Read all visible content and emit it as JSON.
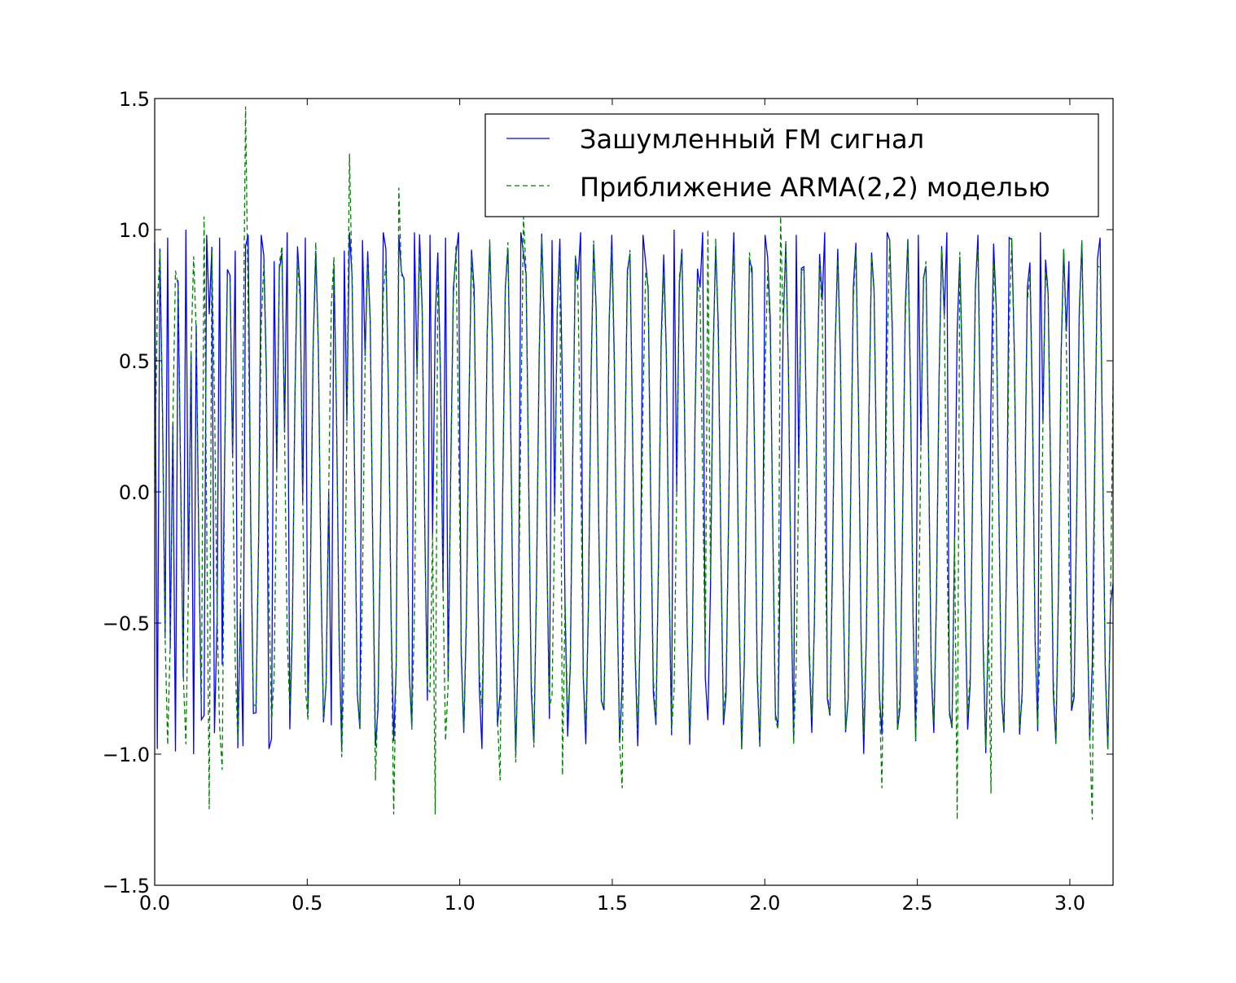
{
  "chart_data": {
    "type": "line",
    "title": "",
    "xlabel": "",
    "ylabel": "",
    "xlim": [
      0,
      3.1416
    ],
    "ylim": [
      -1.5,
      1.5
    ],
    "grid": false,
    "legend_position": "top-right",
    "x_ticks": [
      "0.0",
      "0.5",
      "1.0",
      "1.5",
      "2.0",
      "2.5",
      "3.0"
    ],
    "y_ticks": [
      "1.5",
      "1.0",
      "0.5",
      "0.0",
      "−0.5",
      "−1.0",
      "−1.5"
    ],
    "x_tick_values": [
      0,
      0.5,
      1.0,
      1.5,
      2.0,
      2.5,
      3.0
    ],
    "y_tick_values": [
      1.5,
      1.0,
      0.5,
      0.0,
      -0.5,
      -1.0,
      -1.5
    ],
    "sampling": {
      "x_start": 0.0,
      "x_end": 3.1416,
      "n_points": 370
    },
    "series": [
      {
        "name": "Зашумленный FM сигнал",
        "color": "#0000ff",
        "style": "solid",
        "peaks": [
          {
            "x": 0.0,
            "y": 0.95
          },
          {
            "x": 0.006,
            "y": -0.98
          },
          {
            "x": 0.046,
            "y": 0.97
          },
          {
            "x": 0.067,
            "y": -0.99
          },
          {
            "x": 0.1,
            "y": 1.0
          },
          {
            "x": 0.128,
            "y": -1.0
          },
          {
            "x": 0.167,
            "y": 0.98
          },
          {
            "x": 0.2,
            "y": -0.92
          },
          {
            "x": 0.215,
            "y": 0.97
          },
          {
            "x": 0.263,
            "y": 0.92
          },
          {
            "x": 0.29,
            "y": -0.97
          },
          {
            "x": 0.303,
            "y": 0.98
          },
          {
            "x": 0.35,
            "y": 0.98
          },
          {
            "x": 0.378,
            "y": -0.98
          },
          {
            "x": 0.39,
            "y": 0.88
          },
          {
            "x": 0.43,
            "y": 0.99
          },
          {
            "x": 0.49,
            "y": 0.97
          },
          {
            "x": 0.582,
            "y": -0.89
          },
          {
            "x": 0.62,
            "y": 0.92
          },
          {
            "x": 0.638,
            "y": 0.99
          },
          {
            "x": 0.682,
            "y": 0.96
          },
          {
            "x": 0.726,
            "y": -0.97
          },
          {
            "x": 0.75,
            "y": 0.99
          },
          {
            "x": 0.8,
            "y": 0.98
          },
          {
            "x": 0.85,
            "y": 0.99
          },
          {
            "x": 0.9,
            "y": 0.98
          },
          {
            "x": 0.95,
            "y": 0.97
          },
          {
            "x": 1.0,
            "y": 0.99
          },
          {
            "x": 1.07,
            "y": -0.98
          },
          {
            "x": 1.2,
            "y": 0.99
          },
          {
            "x": 1.3,
            "y": 0.96
          },
          {
            "x": 1.4,
            "y": 0.99
          },
          {
            "x": 1.5,
            "y": 0.98
          },
          {
            "x": 1.6,
            "y": 0.98
          },
          {
            "x": 1.7,
            "y": 1.0
          },
          {
            "x": 1.8,
            "y": 0.99
          },
          {
            "x": 1.9,
            "y": 0.99
          },
          {
            "x": 2.0,
            "y": 0.98
          },
          {
            "x": 2.1,
            "y": 0.98
          },
          {
            "x": 2.2,
            "y": 0.99
          },
          {
            "x": 2.3,
            "y": 0.95
          },
          {
            "x": 2.4,
            "y": 0.99
          },
          {
            "x": 2.5,
            "y": 0.98
          },
          {
            "x": 2.6,
            "y": 0.99
          },
          {
            "x": 2.7,
            "y": 0.98
          },
          {
            "x": 2.8,
            "y": 0.97
          },
          {
            "x": 2.9,
            "y": 0.99
          },
          {
            "x": 3.0,
            "y": 0.88
          },
          {
            "x": 3.1,
            "y": 0.97
          },
          {
            "x": 3.1416,
            "y": -0.35
          }
        ]
      },
      {
        "name": "Приближение ARMA(2,2) моделью",
        "color": "#008000",
        "style": "dashed",
        "spikes": [
          {
            "x": 0.16,
            "y": 1.05
          },
          {
            "x": 0.182,
            "y": -1.21
          },
          {
            "x": 0.22,
            "y": -1.06
          },
          {
            "x": 0.3,
            "y": 1.47
          },
          {
            "x": 0.638,
            "y": 1.29
          },
          {
            "x": 0.72,
            "y": -1.1
          },
          {
            "x": 0.78,
            "y": -1.23
          },
          {
            "x": 0.8,
            "y": 1.16
          },
          {
            "x": 0.92,
            "y": -1.23
          },
          {
            "x": 1.13,
            "y": -1.1
          },
          {
            "x": 1.21,
            "y": 1.05
          },
          {
            "x": 1.34,
            "y": -1.08
          },
          {
            "x": 1.53,
            "y": -1.13
          },
          {
            "x": 1.81,
            "y": 1.0
          },
          {
            "x": 2.05,
            "y": 1.05
          },
          {
            "x": 2.38,
            "y": -1.13
          },
          {
            "x": 2.63,
            "y": -1.25
          },
          {
            "x": 2.74,
            "y": -1.15
          },
          {
            "x": 3.07,
            "y": -1.25
          }
        ]
      }
    ]
  }
}
